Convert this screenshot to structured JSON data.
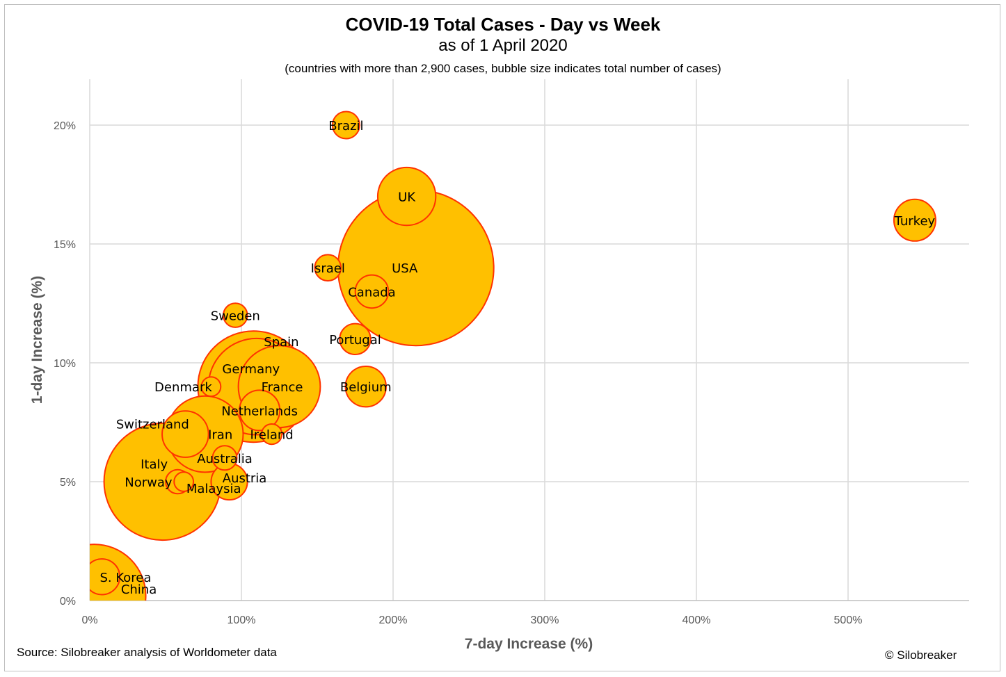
{
  "chart_data": {
    "type": "bubble",
    "title": "COVID-19 Total Cases - Day vs Week",
    "subtitle": "as of 1 April 2020",
    "note": "(countries with more than 2,900 cases, bubble size indicates total number of cases)",
    "xlabel": "7-day Increase (%)",
    "ylabel": "1-day Increase (%)",
    "xlim": [
      0,
      580
    ],
    "ylim": [
      0,
      22
    ],
    "x_ticks": [
      "0%",
      "100%",
      "200%",
      "300%",
      "400%",
      "500%"
    ],
    "y_ticks": [
      "0%",
      "5%",
      "10%",
      "15%",
      "20%"
    ],
    "x_tick_values": [
      0,
      100,
      200,
      300,
      400,
      500
    ],
    "y_tick_values": [
      0,
      5,
      10,
      15,
      20
    ],
    "grid": true,
    "legend": "none",
    "colors": {
      "fill": "#ffc000",
      "stroke": "#ff3300",
      "grid": "#d9d9d9"
    },
    "points": [
      {
        "label": "China",
        "x": 3,
        "y": 0.2,
        "size": 82000
      },
      {
        "label": "Italy",
        "x": 48,
        "y": 5,
        "size": 106000
      },
      {
        "label": "Spain",
        "x": 108,
        "y": 9,
        "size": 96000
      },
      {
        "label": "Germany",
        "x": 110,
        "y": 9,
        "size": 72000
      },
      {
        "label": "USA",
        "x": 215,
        "y": 14,
        "size": 188000
      },
      {
        "label": "France",
        "x": 125,
        "y": 9,
        "size": 52000
      },
      {
        "label": "Iran",
        "x": 76,
        "y": 7,
        "size": 45000
      },
      {
        "label": "UK",
        "x": 209,
        "y": 17,
        "size": 26000
      },
      {
        "label": "Switzerland",
        "x": 63,
        "y": 7,
        "size": 16600
      },
      {
        "label": "Turkey",
        "x": 544,
        "y": 16,
        "size": 13500
      },
      {
        "label": "Belgium",
        "x": 182,
        "y": 9,
        "size": 12800
      },
      {
        "label": "Netherlands",
        "x": 112,
        "y": 8,
        "size": 12600
      },
      {
        "label": "Austria",
        "x": 92,
        "y": 5,
        "size": 10200
      },
      {
        "label": "S. Korea",
        "x": 8,
        "y": 1,
        "size": 9900
      },
      {
        "label": "Canada",
        "x": 186,
        "y": 13,
        "size": 8500
      },
      {
        "label": "Portugal",
        "x": 175,
        "y": 11,
        "size": 7400
      },
      {
        "label": "Brazil",
        "x": 169,
        "y": 20,
        "size": 5700
      },
      {
        "label": "Israel",
        "x": 157,
        "y": 14,
        "size": 5300
      },
      {
        "label": "Sweden",
        "x": 96,
        "y": 12,
        "size": 4500
      },
      {
        "label": "Australia",
        "x": 89,
        "y": 6,
        "size": 4600
      },
      {
        "label": "Norway",
        "x": 58,
        "y": 5,
        "size": 4500
      },
      {
        "label": "Ireland",
        "x": 120,
        "y": 7,
        "size": 3200
      },
      {
        "label": "Denmark",
        "x": 80,
        "y": 9,
        "size": 2900
      },
      {
        "label": "Malaysia",
        "x": 62,
        "y": 5,
        "size": 2900
      }
    ]
  },
  "footer": {
    "source": "Source: Silobreaker analysis of Worldometer data",
    "copyright": "© Silobreaker"
  }
}
